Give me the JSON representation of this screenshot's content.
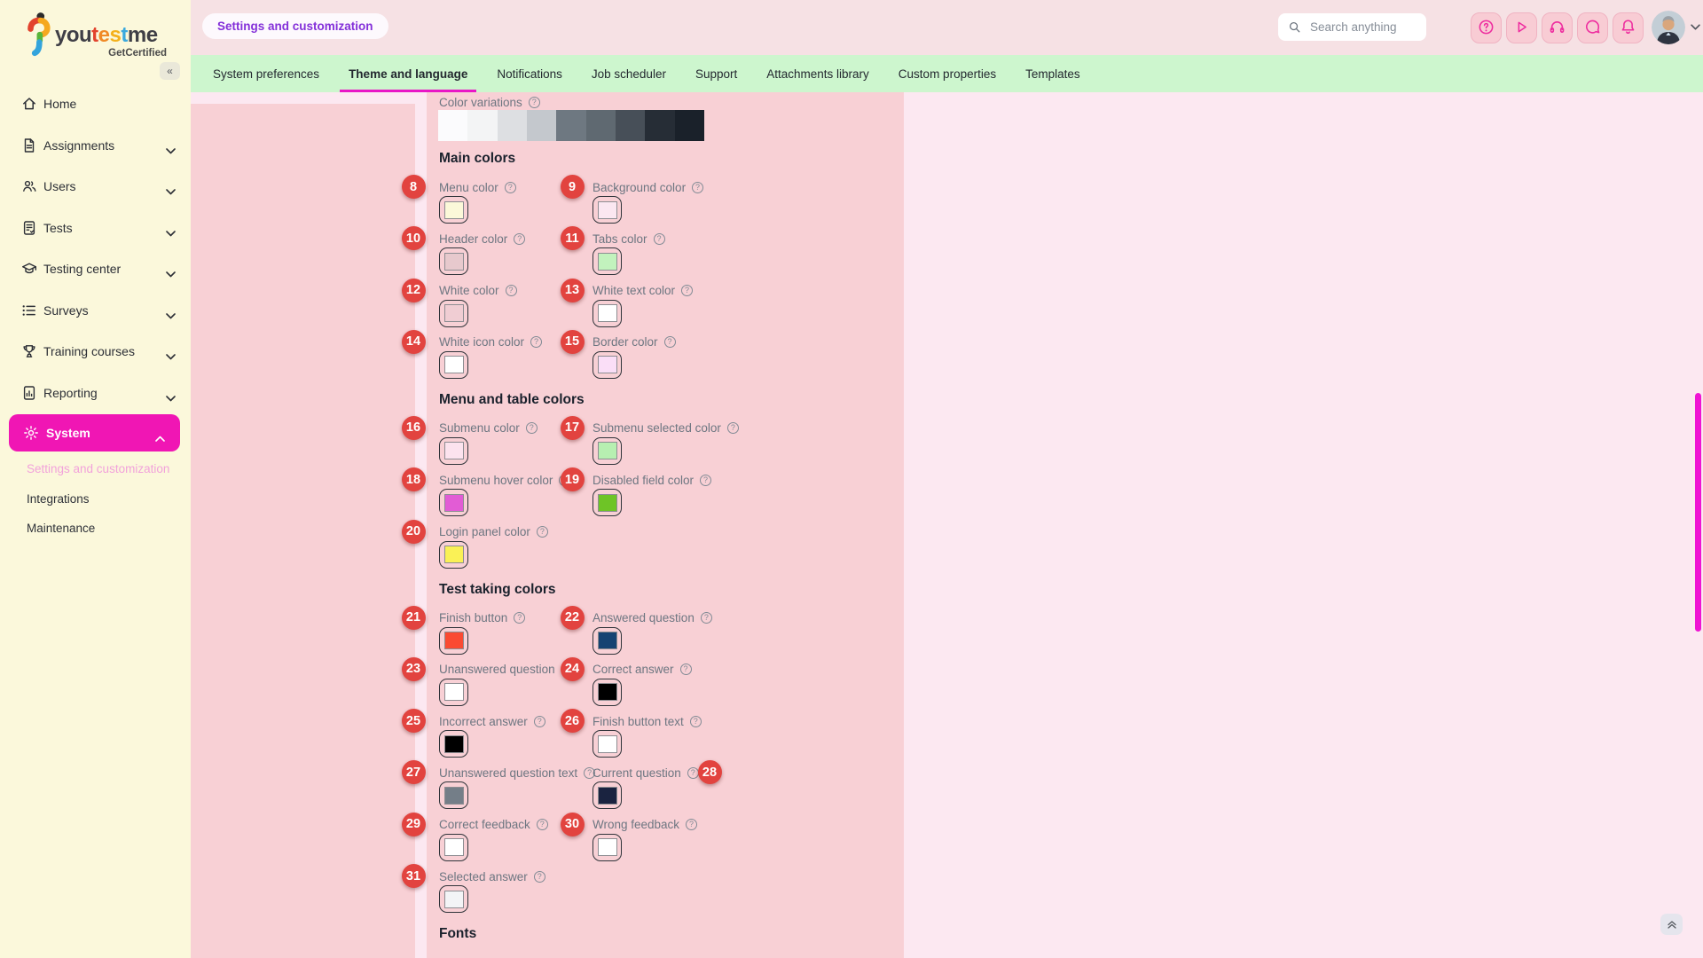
{
  "brand": {
    "word_letters": [
      {
        "t": "you",
        "c": "#3f3f46"
      },
      {
        "t": "t",
        "c": "#e2432d"
      },
      {
        "t": "e",
        "c": "#f08a26"
      },
      {
        "t": "s",
        "c": "#f4b11c"
      },
      {
        "t": "t",
        "c": "#3aa9de"
      },
      {
        "t": "me",
        "c": "#3f3f46"
      }
    ],
    "subtitle": "GetCertified"
  },
  "sidebar": {
    "collapse_glyph": "«",
    "items": [
      {
        "label": "Home",
        "icon": "home-icon",
        "expandable": false,
        "active": false
      },
      {
        "label": "Assignments",
        "icon": "assignments-icon",
        "expandable": true,
        "active": false
      },
      {
        "label": "Users",
        "icon": "users-icon",
        "expandable": true,
        "active": false
      },
      {
        "label": "Tests",
        "icon": "tests-icon",
        "expandable": true,
        "active": false
      },
      {
        "label": "Testing center",
        "icon": "testing-center-icon",
        "expandable": true,
        "active": false
      },
      {
        "label": "Surveys",
        "icon": "surveys-icon",
        "expandable": true,
        "active": false
      },
      {
        "label": "Training courses",
        "icon": "training-courses-icon",
        "expandable": true,
        "active": false
      },
      {
        "label": "Reporting",
        "icon": "reporting-icon",
        "expandable": true,
        "active": false
      },
      {
        "label": "System",
        "icon": "system-icon",
        "expandable": true,
        "active": true,
        "expanded": true
      }
    ],
    "system_subitems": [
      {
        "label": "Settings and customization",
        "active": true
      },
      {
        "label": "Integrations",
        "active": false
      },
      {
        "label": "Maintenance",
        "active": false
      }
    ]
  },
  "header": {
    "page_badge": "Settings and customization",
    "search_placeholder": "Search anything",
    "action_icons": [
      "help-icon",
      "play-icon",
      "headset-icon",
      "chat-icon",
      "bell-icon"
    ],
    "accent_color": "#ee2d9f"
  },
  "tabs": [
    {
      "label": "System preferences",
      "active": false
    },
    {
      "label": "Theme and language",
      "active": true
    },
    {
      "label": "Notifications",
      "active": false
    },
    {
      "label": "Job scheduler",
      "active": false
    },
    {
      "label": "Support",
      "active": false
    },
    {
      "label": "Attachments library",
      "active": false
    },
    {
      "label": "Custom properties",
      "active": false
    },
    {
      "label": "Templates",
      "active": false
    }
  ],
  "content": {
    "color_variations": {
      "label": "Color variations",
      "colors": [
        "#fbfbfd",
        "#f3f4f5",
        "#dddfe2",
        "#c4c8cd",
        "#6e7881",
        "#5f6971",
        "#474f58",
        "#262d36",
        "#1a212a"
      ]
    },
    "sections": [
      {
        "title": "Main colors",
        "fields": [
          {
            "num": "8",
            "label": "Menu color",
            "color": "#fbf8d9"
          },
          {
            "num": "9",
            "label": "Background color",
            "color": "#fbe7f1"
          },
          {
            "num": "10",
            "label": "Header color",
            "color": "#e7c9cd"
          },
          {
            "num": "11",
            "label": "Tabs color",
            "color": "#c2f2bd"
          },
          {
            "num": "12",
            "label": "White color",
            "color": "#f0cdd3"
          },
          {
            "num": "13",
            "label": "White text color",
            "color": "#ffffff"
          },
          {
            "num": "14",
            "label": "White icon color",
            "color": "#ffffff"
          },
          {
            "num": "15",
            "label": "Border color",
            "color": "#fadef7"
          }
        ]
      },
      {
        "title": "Menu and table colors",
        "fields": [
          {
            "num": "16",
            "label": "Submenu color",
            "color": "#fce3ee"
          },
          {
            "num": "17",
            "label": "Submenu selected color",
            "color": "#b7efb1"
          },
          {
            "num": "18",
            "label": "Submenu hover color",
            "color": "#e25cd5"
          },
          {
            "num": "19",
            "label": "Disabled field color",
            "color": "#6ec426"
          },
          {
            "num": "20",
            "label": "Login panel color",
            "color": "#faf156"
          }
        ]
      },
      {
        "title": "Test taking colors",
        "fields": [
          {
            "num": "21",
            "label": "Finish button",
            "color": "#fa4a32"
          },
          {
            "num": "22",
            "label": "Answered question",
            "color": "#164372"
          },
          {
            "num": "23",
            "label": "Unanswered question",
            "color": "#ffffff"
          },
          {
            "num": "24",
            "label": "Correct answer",
            "color": "#000000"
          },
          {
            "num": "25",
            "label": "Incorrect answer",
            "color": "#000000"
          },
          {
            "num": "26",
            "label": "Finish button text",
            "color": "#ffffff"
          },
          {
            "num": "27",
            "label": "Unanswered question text",
            "color": "#747e88"
          },
          {
            "num": "28",
            "label": "Current question",
            "color": "#1a2340",
            "badge_side": "right"
          },
          {
            "num": "29",
            "label": "Correct feedback",
            "color": "#ffffff"
          },
          {
            "num": "30",
            "label": "Wrong feedback",
            "color": "#ffffff"
          },
          {
            "num": "31",
            "label": "Selected answer",
            "color": "#f3f4f6"
          }
        ]
      }
    ],
    "fonts_heading": "Fonts"
  }
}
